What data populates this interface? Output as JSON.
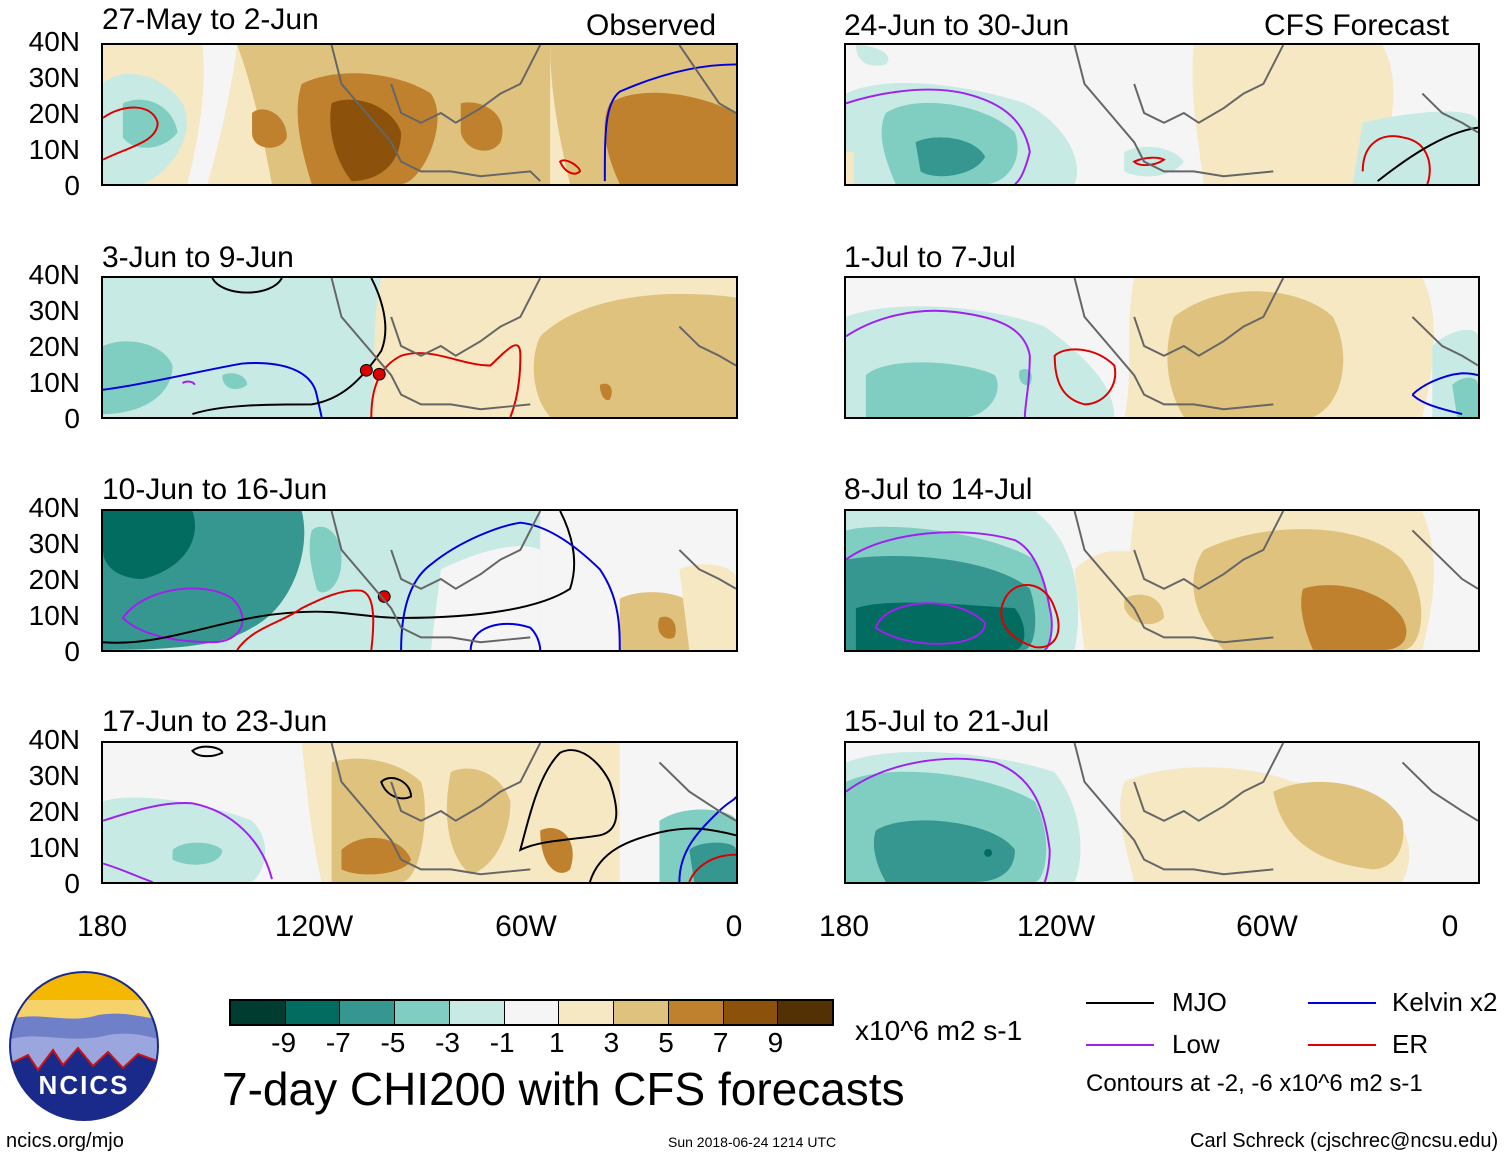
{
  "panels": {
    "observed_header": "Observed",
    "forecast_header": "CFS Forecast",
    "left": [
      {
        "title": "27-May to 2-Jun"
      },
      {
        "title": "3-Jun to 9-Jun"
      },
      {
        "title": "10-Jun to 16-Jun"
      },
      {
        "title": "17-Jun to 23-Jun"
      }
    ],
    "right": [
      {
        "title": "24-Jun to 30-Jun"
      },
      {
        "title": "1-Jul to 7-Jul"
      },
      {
        "title": "8-Jul to 14-Jul"
      },
      {
        "title": "15-Jul to 21-Jul"
      }
    ]
  },
  "axes": {
    "y_ticks": [
      "40N",
      "30N",
      "20N",
      "10N",
      "0"
    ],
    "x_ticks": [
      "180",
      "120W",
      "60W",
      "0"
    ]
  },
  "colorbar": {
    "colors": [
      "#013c30",
      "#016c5f",
      "#35978f",
      "#80cdc1",
      "#c7eae5",
      "#f5f5f5",
      "#f6e8c3",
      "#dfc27d",
      "#bf812d",
      "#8c510a",
      "#543005"
    ],
    "labels": [
      "-9",
      "-7",
      "-5",
      "-3",
      "-1",
      "1",
      "3",
      "5",
      "7",
      "9"
    ],
    "units": "x10^6 m2 s-1"
  },
  "legend": {
    "items": [
      {
        "label": "MJO",
        "color": "#000000"
      },
      {
        "label": "Kelvin x2",
        "color": "#0000dd"
      },
      {
        "label": "Low",
        "color": "#a020f0"
      },
      {
        "label": "ER",
        "color": "#dd0000"
      }
    ],
    "note": "Contours at -2, -6 x10^6 m2 s-1"
  },
  "title": "7-day CHI200 with CFS forecasts",
  "logo": {
    "text": "NCICS"
  },
  "footer": {
    "url": "ncics.org/mjo",
    "timestamp": "Sun 2018-06-24 1214 UTC",
    "author": "Carl Schreck (cjschrec@ncsu.edu)"
  }
}
